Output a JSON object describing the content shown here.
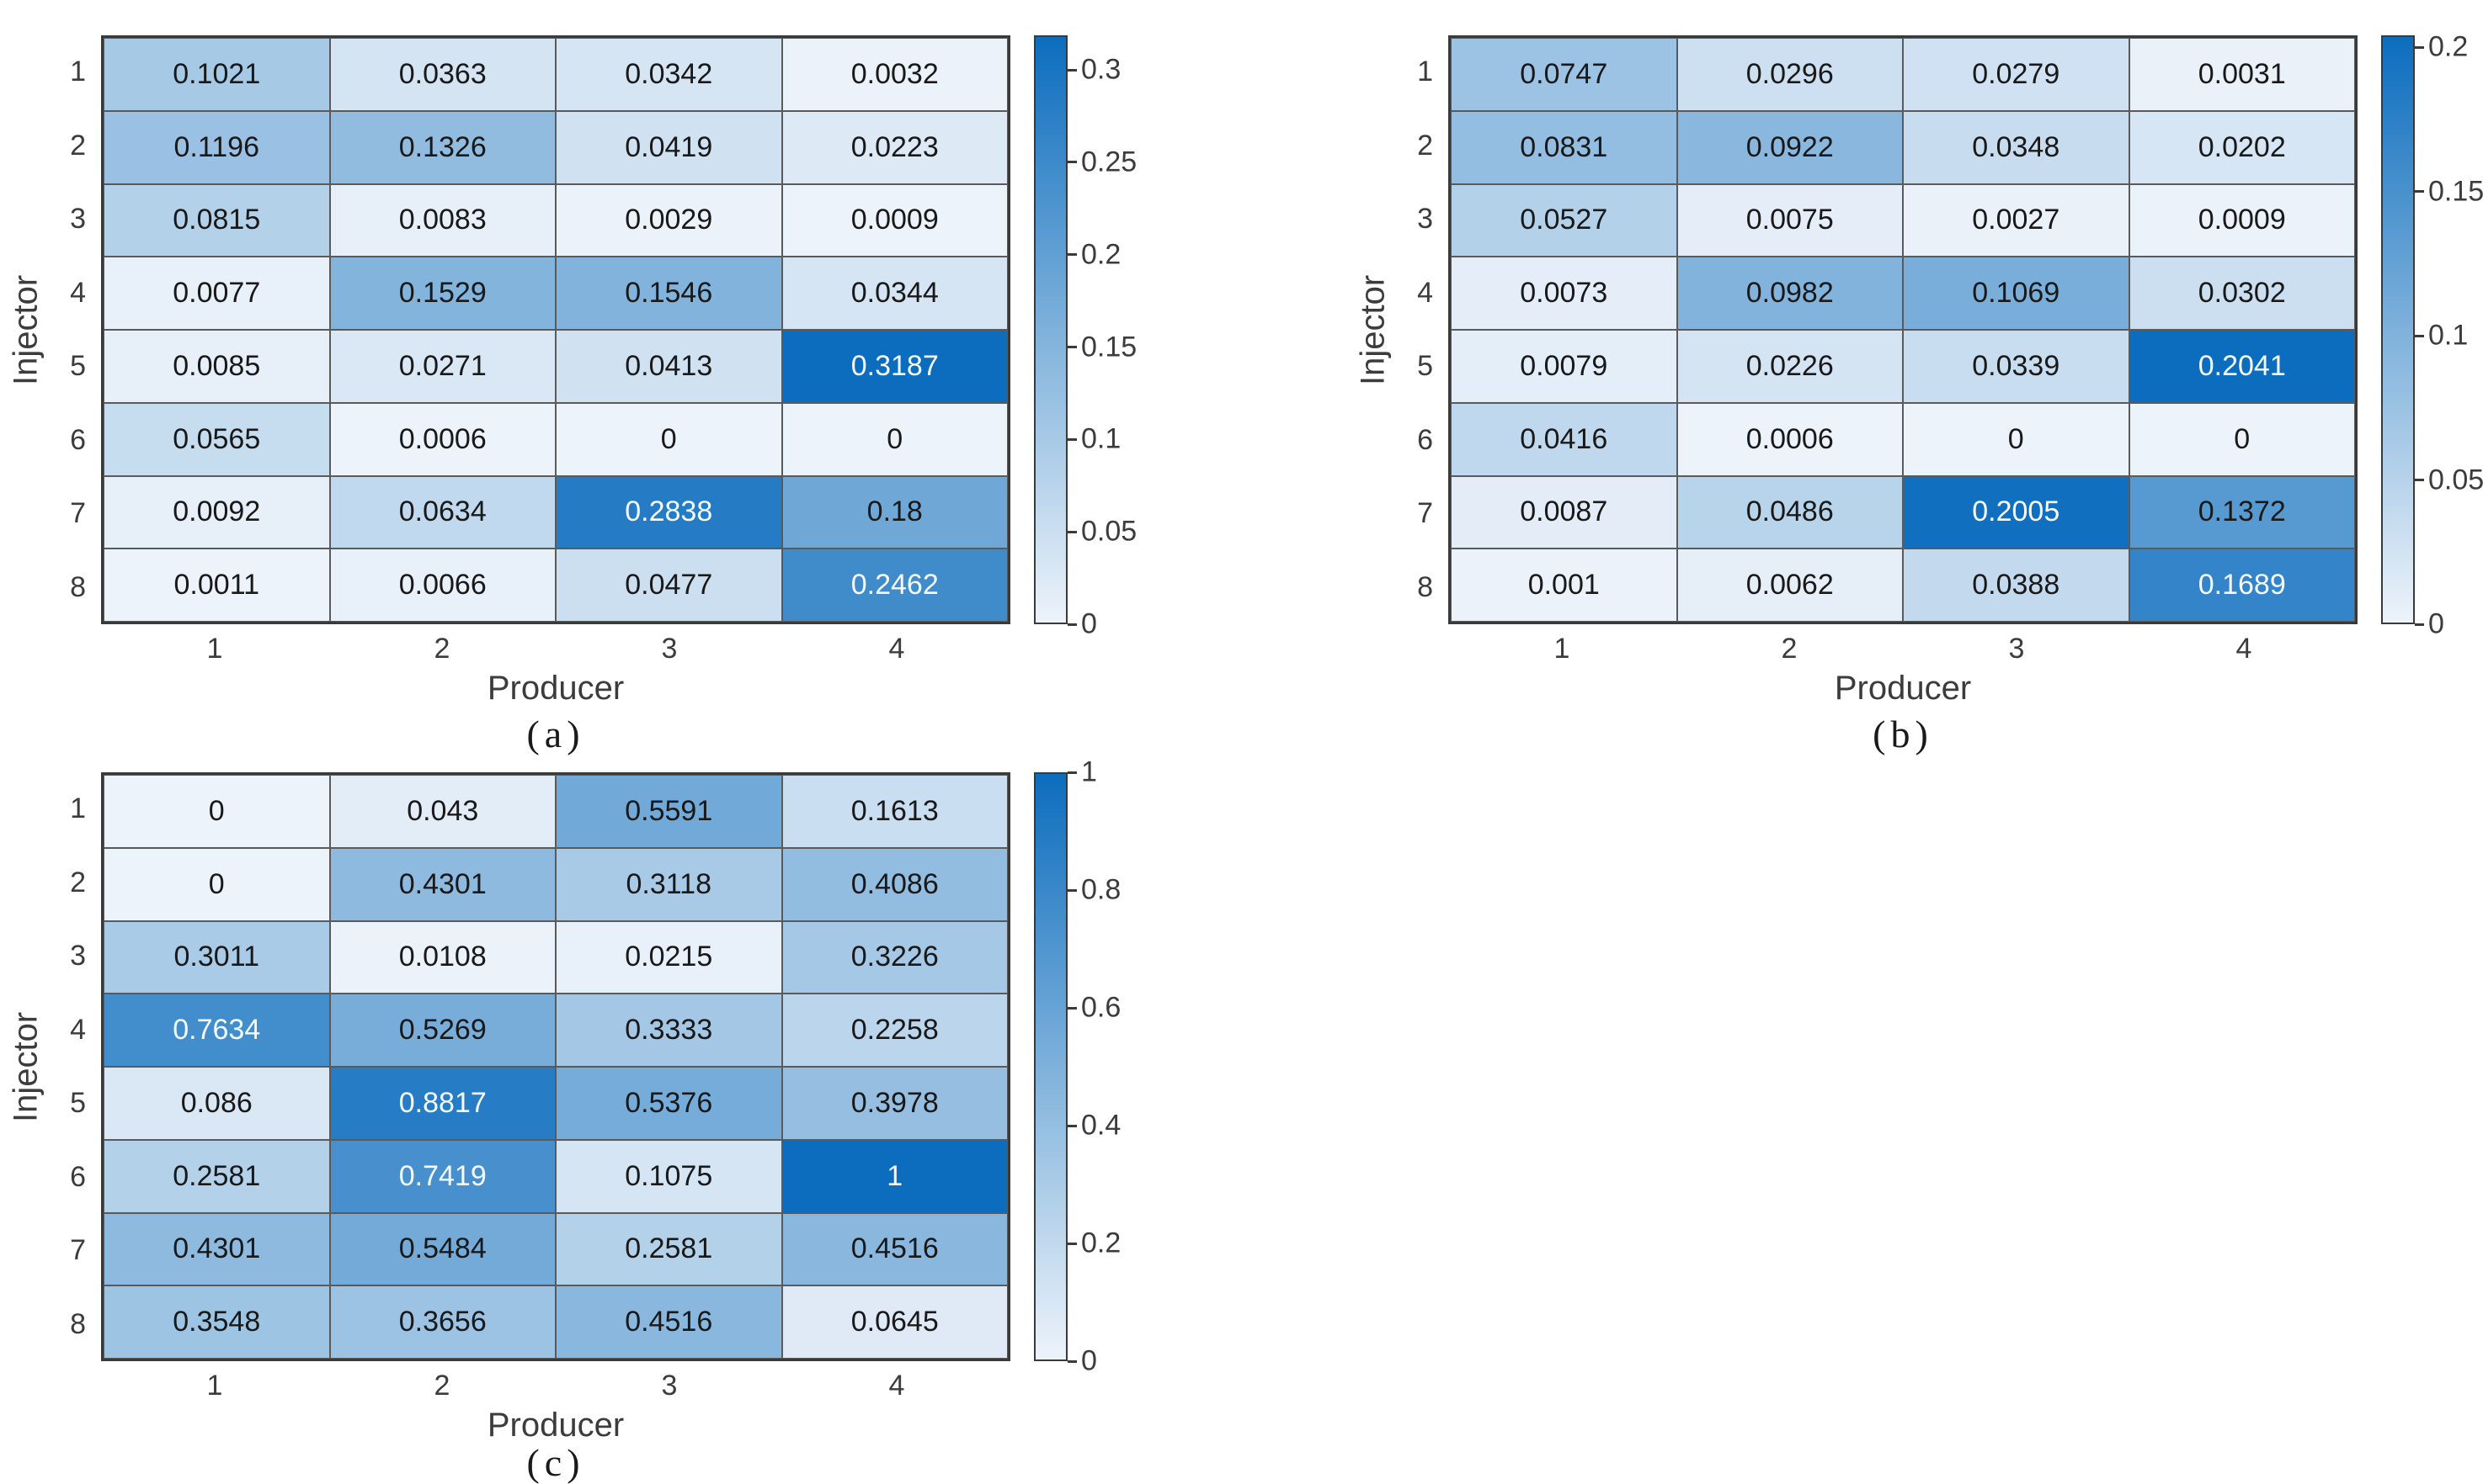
{
  "figure": {
    "background": "#ffffff"
  },
  "colors": {
    "cmap_low": "#edf3fa",
    "cmap_mid": "#7eb1db",
    "cmap_high": "#0c6dbe",
    "cell_text_dark": "#191919",
    "cell_text_light": "#f5faff",
    "axis_text": "#3c3c3c",
    "grid_line": "#5a5a5a",
    "frame": "#3a3a3a",
    "white_text_threshold": 0.7
  },
  "chart_data": [
    {
      "type": "heatmap",
      "caption": "(a)",
      "xlabel": "Producer",
      "ylabel": "Injector",
      "row_labels": [
        "1",
        "2",
        "3",
        "4",
        "5",
        "6",
        "7",
        "8"
      ],
      "col_labels": [
        "1",
        "2",
        "3",
        "4"
      ],
      "values": [
        [
          0.1021,
          0.0363,
          0.0342,
          0.0032
        ],
        [
          0.1196,
          0.1326,
          0.0419,
          0.0223
        ],
        [
          0.0815,
          0.0083,
          0.0029,
          0.0009
        ],
        [
          0.0077,
          0.1529,
          0.1546,
          0.0344
        ],
        [
          0.0085,
          0.0271,
          0.0413,
          0.3187
        ],
        [
          0.0565,
          0.0006,
          0,
          0
        ],
        [
          0.0092,
          0.0634,
          0.2838,
          0.18
        ],
        [
          0.0011,
          0.0066,
          0.0477,
          0.2462
        ]
      ],
      "cell_labels": [
        [
          "0.1021",
          "0.0363",
          "0.0342",
          "0.0032"
        ],
        [
          "0.1196",
          "0.1326",
          "0.0419",
          "0.0223"
        ],
        [
          "0.0815",
          "0.0083",
          "0.0029",
          "0.0009"
        ],
        [
          "0.0077",
          "0.1529",
          "0.1546",
          "0.0344"
        ],
        [
          "0.0085",
          "0.0271",
          "0.0413",
          "0.3187"
        ],
        [
          "0.0565",
          "0.0006",
          "0",
          "0"
        ],
        [
          "0.0092",
          "0.0634",
          "0.2838",
          "0.18"
        ],
        [
          "0.0011",
          "0.0066",
          "0.0477",
          "0.2462"
        ]
      ],
      "colorbar": {
        "min": 0,
        "max": 0.3187,
        "tick_values": [
          0,
          0.05,
          0.1,
          0.15,
          0.2,
          0.25,
          0.3
        ],
        "tick_labels": [
          "0",
          "0.05",
          "0.1",
          "0.15",
          "0.2",
          "0.25",
          "0.3"
        ]
      }
    },
    {
      "type": "heatmap",
      "caption": "(b)",
      "xlabel": "Producer",
      "ylabel": "Injector",
      "row_labels": [
        "1",
        "2",
        "3",
        "4",
        "5",
        "6",
        "7",
        "8"
      ],
      "col_labels": [
        "1",
        "2",
        "3",
        "4"
      ],
      "values": [
        [
          0.0747,
          0.0296,
          0.0279,
          0.0031
        ],
        [
          0.0831,
          0.0922,
          0.0348,
          0.0202
        ],
        [
          0.0527,
          0.0075,
          0.0027,
          0.0009
        ],
        [
          0.0073,
          0.0982,
          0.1069,
          0.0302
        ],
        [
          0.0079,
          0.0226,
          0.0339,
          0.2041
        ],
        [
          0.0416,
          0.0006,
          0,
          0
        ],
        [
          0.0087,
          0.0486,
          0.2005,
          0.1372
        ],
        [
          0.001,
          0.0062,
          0.0388,
          0.1689
        ]
      ],
      "cell_labels": [
        [
          "0.0747",
          "0.0296",
          "0.0279",
          "0.0031"
        ],
        [
          "0.0831",
          "0.0922",
          "0.0348",
          "0.0202"
        ],
        [
          "0.0527",
          "0.0075",
          "0.0027",
          "0.0009"
        ],
        [
          "0.0073",
          "0.0982",
          "0.1069",
          "0.0302"
        ],
        [
          "0.0079",
          "0.0226",
          "0.0339",
          "0.2041"
        ],
        [
          "0.0416",
          "0.0006",
          "0",
          "0"
        ],
        [
          "0.0087",
          "0.0486",
          "0.2005",
          "0.1372"
        ],
        [
          "0.001",
          "0.0062",
          "0.0388",
          "0.1689"
        ]
      ],
      "colorbar": {
        "min": 0,
        "max": 0.2041,
        "tick_values": [
          0,
          0.05,
          0.1,
          0.15,
          0.2
        ],
        "tick_labels": [
          "0",
          "0.05",
          "0.1",
          "0.15",
          "0.2"
        ]
      }
    },
    {
      "type": "heatmap",
      "caption": "(c)",
      "xlabel": "Producer",
      "ylabel": "Injector",
      "row_labels": [
        "1",
        "2",
        "3",
        "4",
        "5",
        "6",
        "7",
        "8"
      ],
      "col_labels": [
        "1",
        "2",
        "3",
        "4"
      ],
      "values": [
        [
          0,
          0.043,
          0.5591,
          0.1613
        ],
        [
          0,
          0.4301,
          0.3118,
          0.4086
        ],
        [
          0.3011,
          0.0108,
          0.0215,
          0.3226
        ],
        [
          0.7634,
          0.5269,
          0.3333,
          0.2258
        ],
        [
          0.086,
          0.8817,
          0.5376,
          0.3978
        ],
        [
          0.2581,
          0.7419,
          0.1075,
          1
        ],
        [
          0.4301,
          0.5484,
          0.2581,
          0.4516
        ],
        [
          0.3548,
          0.3656,
          0.4516,
          0.0645
        ]
      ],
      "cell_labels": [
        [
          "0",
          "0.043",
          "0.5591",
          "0.1613"
        ],
        [
          "0",
          "0.4301",
          "0.3118",
          "0.4086"
        ],
        [
          "0.3011",
          "0.0108",
          "0.0215",
          "0.3226"
        ],
        [
          "0.7634",
          "0.5269",
          "0.3333",
          "0.2258"
        ],
        [
          "0.086",
          "0.8817",
          "0.5376",
          "0.3978"
        ],
        [
          "0.2581",
          "0.7419",
          "0.1075",
          "1"
        ],
        [
          "0.4301",
          "0.5484",
          "0.2581",
          "0.4516"
        ],
        [
          "0.3548",
          "0.3656",
          "0.4516",
          "0.0645"
        ]
      ],
      "colorbar": {
        "min": 0,
        "max": 1,
        "tick_values": [
          0,
          0.2,
          0.4,
          0.6,
          0.8,
          1
        ],
        "tick_labels": [
          "0",
          "0.2",
          "0.4",
          "0.6",
          "0.8",
          "1"
        ]
      }
    }
  ]
}
